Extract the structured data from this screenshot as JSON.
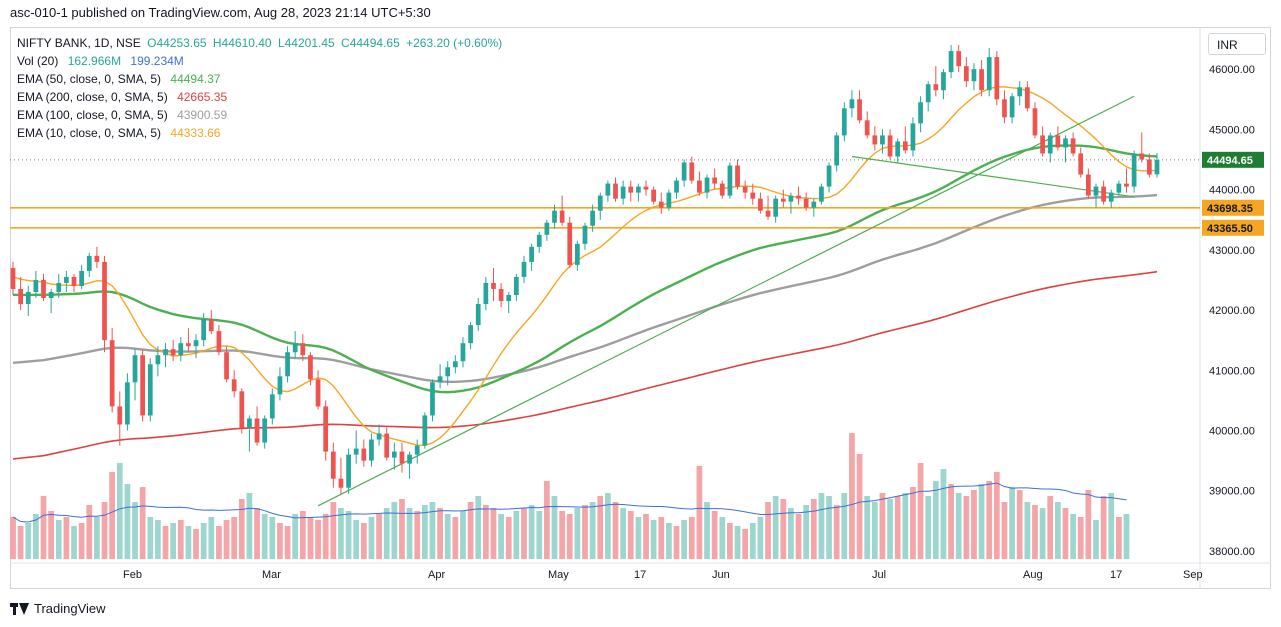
{
  "header": {
    "caption": "asc-010-1 published on TradingView.com, Aug 28, 2023 21:14 UTC+5:30"
  },
  "legend": {
    "symbol": "NIFTY BANK, 1D, NSE",
    "open": "O44253.65",
    "high": "H44610.40",
    "low": "L44201.45",
    "close": "C44494.65",
    "change": "+263.20 (+0.60%)",
    "vol_label": "Vol (20)",
    "vol_value1": "162.966M",
    "vol_value2": "199.234M",
    "ema50_label": "EMA (50, close, 0, SMA, 5)",
    "ema50_value": "44494.37",
    "ema200_label": "EMA (200, close, 0, SMA, 5)",
    "ema200_value": "42665.35",
    "ema100_label": "EMA (100, close, 0, SMA, 5)",
    "ema100_value": "43900.59",
    "ema10_label": "EMA (10, close, 0, SMA, 5)",
    "ema10_value": "44333.66"
  },
  "currency_button": "INR",
  "footer": {
    "brand": "TradingView"
  },
  "colors": {
    "up": "#26a69a",
    "down": "#ef5350",
    "vol_up": "#9dd6cf",
    "vol_down": "#f3a5a8",
    "ema10": "#f5a623",
    "ema50": "#4caf50",
    "ema100": "#9e9e9e",
    "ema200": "#e04040",
    "vol_ma": "#3f6fd8",
    "level": "#f5a623",
    "trendline": "#4caf50",
    "price_tag": "#1e7d32",
    "level_tag": "#f5a623"
  },
  "chart_data": {
    "type": "candlestick",
    "title": "NIFTY BANK, 1D, NSE",
    "y_axis": {
      "min": 37800,
      "max": 46700,
      "ticks": [
        "38000.00",
        "39000.00",
        "40000.00",
        "41000.00",
        "42000.00",
        "43000.00",
        "44000.00",
        "45000.00",
        "46000.00"
      ]
    },
    "x_axis": {
      "labels": [
        "Feb",
        "Mar",
        "Apr",
        "May",
        "17",
        "Jun",
        "Jul",
        "Aug",
        "17",
        "Sep"
      ]
    },
    "current_price": "44494.65",
    "horizontal_levels": [
      "43698.35",
      "43365.50"
    ],
    "candles": [
      [
        42700,
        42800,
        42250,
        42350
      ],
      [
        42350,
        42550,
        42000,
        42100
      ],
      [
        42100,
        42400,
        41900,
        42300
      ],
      [
        42300,
        42650,
        42200,
        42500
      ],
      [
        42500,
        42600,
        42150,
        42200
      ],
      [
        42200,
        42350,
        41950,
        42300
      ],
      [
        42300,
        42600,
        42200,
        42450
      ],
      [
        42450,
        42650,
        42300,
        42550
      ],
      [
        42550,
        42600,
        42300,
        42400
      ],
      [
        42400,
        42750,
        42350,
        42650
      ],
      [
        42650,
        42950,
        42550,
        42900
      ],
      [
        42900,
        43050,
        42700,
        42800
      ],
      [
        42800,
        42900,
        41300,
        41500
      ],
      [
        41500,
        41700,
        40300,
        40400
      ],
      [
        40400,
        40650,
        39750,
        40100
      ],
      [
        40100,
        40950,
        40000,
        40800
      ],
      [
        40800,
        41350,
        40500,
        41250
      ],
      [
        41250,
        41350,
        40150,
        40250
      ],
      [
        40250,
        41200,
        40150,
        41100
      ],
      [
        41100,
        41400,
        40900,
        41250
      ],
      [
        41250,
        41450,
        41050,
        41350
      ],
      [
        41350,
        41500,
        41150,
        41250
      ],
      [
        41250,
        41550,
        41150,
        41450
      ],
      [
        41450,
        41700,
        41300,
        41400
      ],
      [
        41400,
        41600,
        41200,
        41500
      ],
      [
        41500,
        41950,
        41400,
        41850
      ],
      [
        41850,
        42000,
        41600,
        41650
      ],
      [
        41650,
        41750,
        41250,
        41300
      ],
      [
        41300,
        41400,
        40800,
        40850
      ],
      [
        40850,
        41000,
        40550,
        40650
      ],
      [
        40650,
        40700,
        39950,
        40050
      ],
      [
        40050,
        40250,
        39650,
        40200
      ],
      [
        40200,
        40400,
        39750,
        39800
      ],
      [
        39800,
        40250,
        39700,
        40200
      ],
      [
        40200,
        40700,
        40100,
        40600
      ],
      [
        40600,
        41050,
        40500,
        40900
      ],
      [
        40900,
        41400,
        40800,
        41300
      ],
      [
        41300,
        41650,
        41200,
        41450
      ],
      [
        41450,
        41600,
        41150,
        41250
      ],
      [
        41250,
        41300,
        40750,
        40850
      ],
      [
        40850,
        41000,
        40350,
        40400
      ],
      [
        40400,
        40500,
        39500,
        39650
      ],
      [
        39650,
        39800,
        39050,
        39200
      ],
      [
        39200,
        39550,
        38950,
        39050
      ],
      [
        39050,
        39700,
        38950,
        39600
      ],
      [
        39600,
        40000,
        39450,
        39700
      ],
      [
        39700,
        39850,
        39400,
        39500
      ],
      [
        39500,
        39950,
        39400,
        39850
      ],
      [
        39850,
        40100,
        39750,
        39950
      ],
      [
        39950,
        40050,
        39500,
        39550
      ],
      [
        39550,
        39800,
        39350,
        39650
      ],
      [
        39650,
        39800,
        39300,
        39450
      ],
      [
        39450,
        39650,
        39200,
        39600
      ],
      [
        39600,
        39850,
        39450,
        39750
      ],
      [
        39750,
        40300,
        39700,
        40250
      ],
      [
        40250,
        40850,
        40150,
        40800
      ],
      [
        40800,
        41100,
        40700,
        40900
      ],
      [
        40900,
        41150,
        40750,
        41050
      ],
      [
        41050,
        41250,
        40950,
        41150
      ],
      [
        41150,
        41550,
        41050,
        41450
      ],
      [
        41450,
        41800,
        41350,
        41750
      ],
      [
        41750,
        42200,
        41650,
        42100
      ],
      [
        42100,
        42550,
        42000,
        42450
      ],
      [
        42450,
        42700,
        42150,
        42350
      ],
      [
        42350,
        42450,
        42050,
        42150
      ],
      [
        42150,
        42300,
        41950,
        42250
      ],
      [
        42250,
        42600,
        42150,
        42550
      ],
      [
        42550,
        42900,
        42450,
        42800
      ],
      [
        42800,
        43100,
        42650,
        43050
      ],
      [
        43050,
        43300,
        42950,
        43250
      ],
      [
        43250,
        43500,
        43150,
        43450
      ],
      [
        43450,
        43750,
        43350,
        43650
      ],
      [
        43650,
        43900,
        43400,
        43450
      ],
      [
        43450,
        43550,
        42700,
        42750
      ],
      [
        42750,
        43150,
        42650,
        43100
      ],
      [
        43100,
        43450,
        43000,
        43400
      ],
      [
        43400,
        43750,
        43300,
        43650
      ],
      [
        43650,
        43950,
        43500,
        43900
      ],
      [
        43900,
        44150,
        43800,
        44100
      ],
      [
        44100,
        44200,
        43800,
        43850
      ],
      [
        43850,
        44150,
        43750,
        44050
      ],
      [
        44050,
        44150,
        43800,
        43950
      ],
      [
        43950,
        44100,
        43800,
        44050
      ],
      [
        44050,
        44150,
        43900,
        44000
      ],
      [
        44000,
        44050,
        43750,
        43800
      ],
      [
        43800,
        43950,
        43600,
        43700
      ],
      [
        43700,
        44000,
        43650,
        43950
      ],
      [
        43950,
        44200,
        43850,
        44150
      ],
      [
        44150,
        44500,
        44050,
        44450
      ],
      [
        44450,
        44550,
        44100,
        44150
      ],
      [
        44150,
        44300,
        43900,
        43950
      ],
      [
        43950,
        44250,
        43850,
        44200
      ],
      [
        44200,
        44350,
        44000,
        44100
      ],
      [
        44100,
        44150,
        43850,
        43900
      ],
      [
        43900,
        44450,
        43850,
        44400
      ],
      [
        44400,
        44500,
        44000,
        44050
      ],
      [
        44050,
        44150,
        43850,
        43950
      ],
      [
        43950,
        44100,
        43750,
        43850
      ],
      [
        43850,
        43950,
        43600,
        43650
      ],
      [
        43650,
        43900,
        43500,
        43550
      ],
      [
        43550,
        43900,
        43450,
        43850
      ],
      [
        43850,
        44000,
        43700,
        43800
      ],
      [
        43800,
        43950,
        43600,
        43900
      ],
      [
        43900,
        44050,
        43750,
        43850
      ],
      [
        43850,
        43950,
        43650,
        43700
      ],
      [
        43700,
        43850,
        43550,
        43800
      ],
      [
        43800,
        44100,
        43750,
        44050
      ],
      [
        44050,
        44450,
        43950,
        44400
      ],
      [
        44400,
        44950,
        44300,
        44900
      ],
      [
        44900,
        45450,
        44800,
        45350
      ],
      [
        45350,
        45650,
        45200,
        45500
      ],
      [
        45500,
        45650,
        45100,
        45150
      ],
      [
        45150,
        45300,
        44850,
        44900
      ],
      [
        44900,
        45050,
        44650,
        44750
      ],
      [
        44750,
        45000,
        44600,
        44900
      ],
      [
        44900,
        45000,
        44500,
        44550
      ],
      [
        44550,
        44850,
        44450,
        44800
      ],
      [
        44800,
        45050,
        44600,
        44650
      ],
      [
        44650,
        45200,
        44550,
        45100
      ],
      [
        45100,
        45550,
        44950,
        45450
      ],
      [
        45450,
        45800,
        45300,
        45750
      ],
      [
        45750,
        46050,
        45550,
        45650
      ],
      [
        45650,
        46000,
        45500,
        45950
      ],
      [
        45950,
        46400,
        45850,
        46300
      ],
      [
        46300,
        46400,
        45950,
        46050
      ],
      [
        46050,
        46200,
        45700,
        45800
      ],
      [
        45800,
        46100,
        45650,
        46000
      ],
      [
        46000,
        46150,
        45550,
        45650
      ],
      [
        45650,
        46350,
        45550,
        46200
      ],
      [
        46200,
        46300,
        45400,
        45500
      ],
      [
        45500,
        45650,
        45100,
        45200
      ],
      [
        45200,
        45600,
        45100,
        45550
      ],
      [
        45550,
        45800,
        45400,
        45700
      ],
      [
        45700,
        45800,
        45300,
        45350
      ],
      [
        45350,
        45450,
        44850,
        44900
      ],
      [
        44900,
        45050,
        44550,
        44600
      ],
      [
        44600,
        44950,
        44450,
        44900
      ],
      [
        44900,
        45050,
        44650,
        44700
      ],
      [
        44700,
        44900,
        44450,
        44850
      ],
      [
        44850,
        44950,
        44550,
        44600
      ],
      [
        44600,
        44700,
        44200,
        44250
      ],
      [
        44250,
        44350,
        43850,
        43900
      ],
      [
        43900,
        44100,
        43700,
        44050
      ],
      [
        44050,
        44150,
        43750,
        43800
      ],
      [
        43800,
        44000,
        43700,
        43950
      ],
      [
        43950,
        44150,
        43900,
        44100
      ],
      [
        44100,
        44350,
        43950,
        44050
      ],
      [
        44050,
        44650,
        43950,
        44600
      ],
      [
        44600,
        44950,
        44450,
        44500
      ],
      [
        44500,
        44600,
        44200,
        44250
      ],
      [
        44253.65,
        44610.4,
        44201.45,
        44494.65
      ]
    ],
    "volume": [
      [
        0.7,
        0
      ],
      [
        0.55,
        0
      ],
      [
        0.6,
        1
      ],
      [
        0.75,
        1
      ],
      [
        1.05,
        0
      ],
      [
        0.8,
        0
      ],
      [
        0.65,
        1
      ],
      [
        0.7,
        0
      ],
      [
        0.55,
        1
      ],
      [
        0.6,
        0
      ],
      [
        0.9,
        0
      ],
      [
        0.7,
        1
      ],
      [
        0.95,
        0
      ],
      [
        1.45,
        0
      ],
      [
        1.6,
        1
      ],
      [
        1.25,
        1
      ],
      [
        0.95,
        1
      ],
      [
        1.2,
        0
      ],
      [
        0.7,
        1
      ],
      [
        0.65,
        1
      ],
      [
        0.55,
        0
      ],
      [
        0.6,
        1
      ],
      [
        0.65,
        0
      ],
      [
        0.55,
        1
      ],
      [
        0.5,
        0
      ],
      [
        0.6,
        1
      ],
      [
        0.7,
        1
      ],
      [
        0.55,
        0
      ],
      [
        0.65,
        0
      ],
      [
        0.7,
        0
      ],
      [
        1.0,
        0
      ],
      [
        1.1,
        1
      ],
      [
        0.85,
        0
      ],
      [
        0.75,
        1
      ],
      [
        0.7,
        1
      ],
      [
        0.6,
        0
      ],
      [
        0.55,
        0
      ],
      [
        0.75,
        1
      ],
      [
        0.8,
        0
      ],
      [
        0.7,
        0
      ],
      [
        0.65,
        0
      ],
      [
        0.75,
        0
      ],
      [
        0.95,
        0
      ],
      [
        0.85,
        1
      ],
      [
        0.8,
        1
      ],
      [
        0.65,
        1
      ],
      [
        0.6,
        0
      ],
      [
        0.7,
        1
      ],
      [
        0.75,
        0
      ],
      [
        0.85,
        1
      ],
      [
        0.95,
        1
      ],
      [
        1.0,
        0
      ],
      [
        0.85,
        1
      ],
      [
        0.8,
        0
      ],
      [
        0.9,
        1
      ],
      [
        0.95,
        1
      ],
      [
        0.85,
        0
      ],
      [
        0.75,
        1
      ],
      [
        0.7,
        0
      ],
      [
        0.8,
        1
      ],
      [
        0.95,
        0
      ],
      [
        1.05,
        1
      ],
      [
        0.9,
        0
      ],
      [
        0.85,
        0
      ],
      [
        0.75,
        1
      ],
      [
        0.7,
        0
      ],
      [
        0.8,
        1
      ],
      [
        0.85,
        0
      ],
      [
        0.9,
        1
      ],
      [
        0.8,
        1
      ],
      [
        1.3,
        0
      ],
      [
        1.05,
        1
      ],
      [
        0.8,
        0
      ],
      [
        0.75,
        0
      ],
      [
        0.85,
        1
      ],
      [
        0.9,
        0
      ],
      [
        0.95,
        1
      ],
      [
        1.05,
        0
      ],
      [
        1.1,
        1
      ],
      [
        0.95,
        0
      ],
      [
        0.85,
        1
      ],
      [
        0.8,
        0
      ],
      [
        0.7,
        1
      ],
      [
        0.75,
        0
      ],
      [
        0.65,
        1
      ],
      [
        0.7,
        0
      ],
      [
        0.6,
        1
      ],
      [
        0.55,
        0
      ],
      [
        0.65,
        1
      ],
      [
        0.7,
        0
      ],
      [
        1.55,
        0
      ],
      [
        0.95,
        1
      ],
      [
        0.8,
        0
      ],
      [
        0.7,
        1
      ],
      [
        0.6,
        0
      ],
      [
        0.55,
        1
      ],
      [
        0.5,
        0
      ],
      [
        0.6,
        1
      ],
      [
        0.7,
        1
      ],
      [
        0.95,
        0
      ],
      [
        1.05,
        1
      ],
      [
        1.0,
        0
      ],
      [
        0.85,
        1
      ],
      [
        0.75,
        0
      ],
      [
        0.9,
        1
      ],
      [
        1.0,
        0
      ],
      [
        1.1,
        1
      ],
      [
        1.05,
        1
      ],
      [
        0.9,
        0
      ],
      [
        1.1,
        1
      ],
      [
        2.1,
        0
      ],
      [
        1.75,
        0
      ],
      [
        1.05,
        1
      ],
      [
        0.95,
        1
      ],
      [
        1.1,
        0
      ],
      [
        1.0,
        1
      ],
      [
        1.05,
        0
      ],
      [
        1.1,
        1
      ],
      [
        1.2,
        0
      ],
      [
        1.6,
        0
      ],
      [
        1.05,
        1
      ],
      [
        1.3,
        1
      ],
      [
        1.5,
        1
      ],
      [
        1.25,
        0
      ],
      [
        1.1,
        1
      ],
      [
        1.05,
        0
      ],
      [
        1.15,
        0
      ],
      [
        1.25,
        1
      ],
      [
        1.3,
        0
      ],
      [
        1.45,
        0
      ],
      [
        0.95,
        0
      ],
      [
        1.2,
        1
      ],
      [
        1.15,
        0
      ],
      [
        0.95,
        1
      ],
      [
        0.9,
        0
      ],
      [
        0.85,
        1
      ],
      [
        1.05,
        0
      ],
      [
        0.95,
        1
      ],
      [
        0.85,
        0
      ],
      [
        0.75,
        1
      ],
      [
        0.7,
        0
      ],
      [
        1.15,
        0
      ],
      [
        0.65,
        1
      ],
      [
        1.05,
        0
      ],
      [
        1.1,
        1
      ],
      [
        0.7,
        0
      ],
      [
        0.75,
        1
      ]
    ]
  }
}
